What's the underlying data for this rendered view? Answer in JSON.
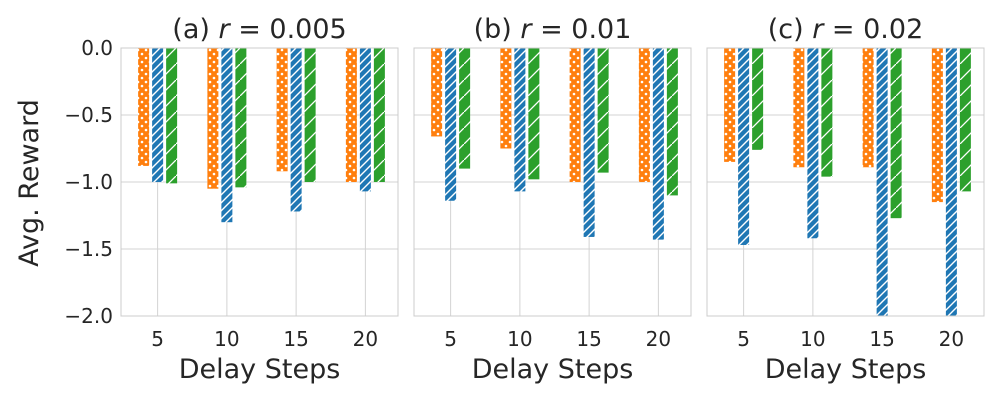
{
  "chart_data": {
    "type": "bar",
    "ylabel": "Avg. Reward",
    "ylim": [
      -2.0,
      0.0
    ],
    "yticks": [
      "0.0",
      "−0.5",
      "−1.0",
      "−1.5",
      "−2.0"
    ],
    "categories": [
      "5",
      "10",
      "15",
      "20"
    ],
    "xlabel": "Delay Steps",
    "grid": true,
    "colors": [
      "#ff7f0e",
      "#1f77b4",
      "#2ca02c"
    ],
    "hatches": [
      "dots",
      "diagonal-dense",
      "diagonal-sparse"
    ],
    "panels": [
      {
        "title_prefix": "(a) ",
        "title_var": "r",
        "title_suffix": " =  0.005",
        "series": [
          {
            "values": [
              -0.88,
              -1.05,
              -0.92,
              -1.0
            ]
          },
          {
            "values": [
              -1.0,
              -1.3,
              -1.22,
              -1.07
            ]
          },
          {
            "values": [
              -1.01,
              -1.04,
              -1.0,
              -1.0
            ]
          }
        ]
      },
      {
        "title_prefix": "(b) ",
        "title_var": "r",
        "title_suffix": " =  0.01",
        "series": [
          {
            "values": [
              -0.66,
              -0.75,
              -1.0,
              -1.0
            ]
          },
          {
            "values": [
              -1.14,
              -1.07,
              -1.41,
              -1.43
            ]
          },
          {
            "values": [
              -0.9,
              -0.98,
              -0.93,
              -1.1
            ]
          }
        ]
      },
      {
        "title_prefix": "(c) ",
        "title_var": "r",
        "title_suffix": " =  0.02",
        "series": [
          {
            "values": [
              -0.85,
              -0.89,
              -0.89,
              -1.15
            ]
          },
          {
            "values": [
              -1.47,
              -1.42,
              -2.0,
              -2.0
            ]
          },
          {
            "values": [
              -0.76,
              -0.96,
              -1.27,
              -1.07
            ]
          }
        ]
      }
    ]
  }
}
